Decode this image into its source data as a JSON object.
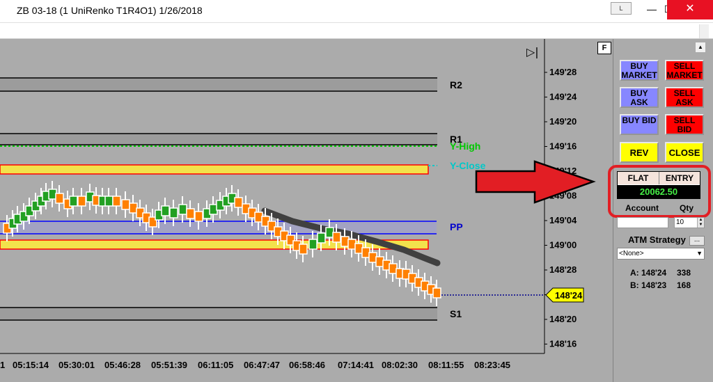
{
  "window": {
    "title": "ZB 03-18 (1 UniRenko T1R4O1)  1/26/2018",
    "link_label": "L",
    "minimize_glyph": "—",
    "maximize_glyph": "☐",
    "close_glyph": "✕"
  },
  "chart": {
    "f_button": "F",
    "scroll_to_end_glyph": "▷|",
    "price_axis_labels": [
      "149'28",
      "149'24",
      "149'20",
      "149'16",
      "149'12",
      "149'08",
      "149'04",
      "149'00",
      "148'28",
      "148'24",
      "148'20",
      "148'16"
    ],
    "time_axis_labels": [
      "1",
      "05:15:14",
      "05:30:01",
      "05:46:28",
      "05:51:39",
      "06:11:05",
      "06:47:47",
      "06:58:46",
      "07:14:41",
      "08:02:30",
      "08:11:55",
      "08:23:45"
    ],
    "level_labels": {
      "r2": "R2",
      "r1": "R1",
      "y_high": "Y-High",
      "y_close": "Y-Close",
      "pp": "PP",
      "s1": "S1"
    },
    "last_price": "148'24",
    "colors": {
      "background": "#ababab",
      "up_bar": "#22a022",
      "down_bar": "#ff8000",
      "zone_fill": "#f2e24c",
      "zone_border": "#ff0000",
      "pp_line": "#0000ff",
      "y_high": "#00c800",
      "y_close": "#00c8c8",
      "moving_average": "#404040",
      "arrow": "#e21e24",
      "last_price_marker": "#ffff00"
    }
  },
  "panel": {
    "buy_market": "BUY MARKET",
    "sell_market": "SELL MARKET",
    "buy_ask": "BUY ASK",
    "sell_ask": "SELL ASK",
    "buy_bid": "BUY BID",
    "sell_bid": "SELL BID",
    "rev": "REV",
    "close": "CLOSE",
    "position": "FLAT",
    "entry": "ENTRY",
    "pnl": "20062.50",
    "account_label": "Account",
    "qty_label": "Qty",
    "qty_value": "10",
    "atm_label": "ATM Strategy",
    "atm_more": "...",
    "atm_value": "<None>",
    "ask_label": "A: 148'24",
    "ask_size": "338",
    "bid_label": "B: 148'23",
    "bid_size": "168",
    "scroll_up_glyph": "▲"
  }
}
